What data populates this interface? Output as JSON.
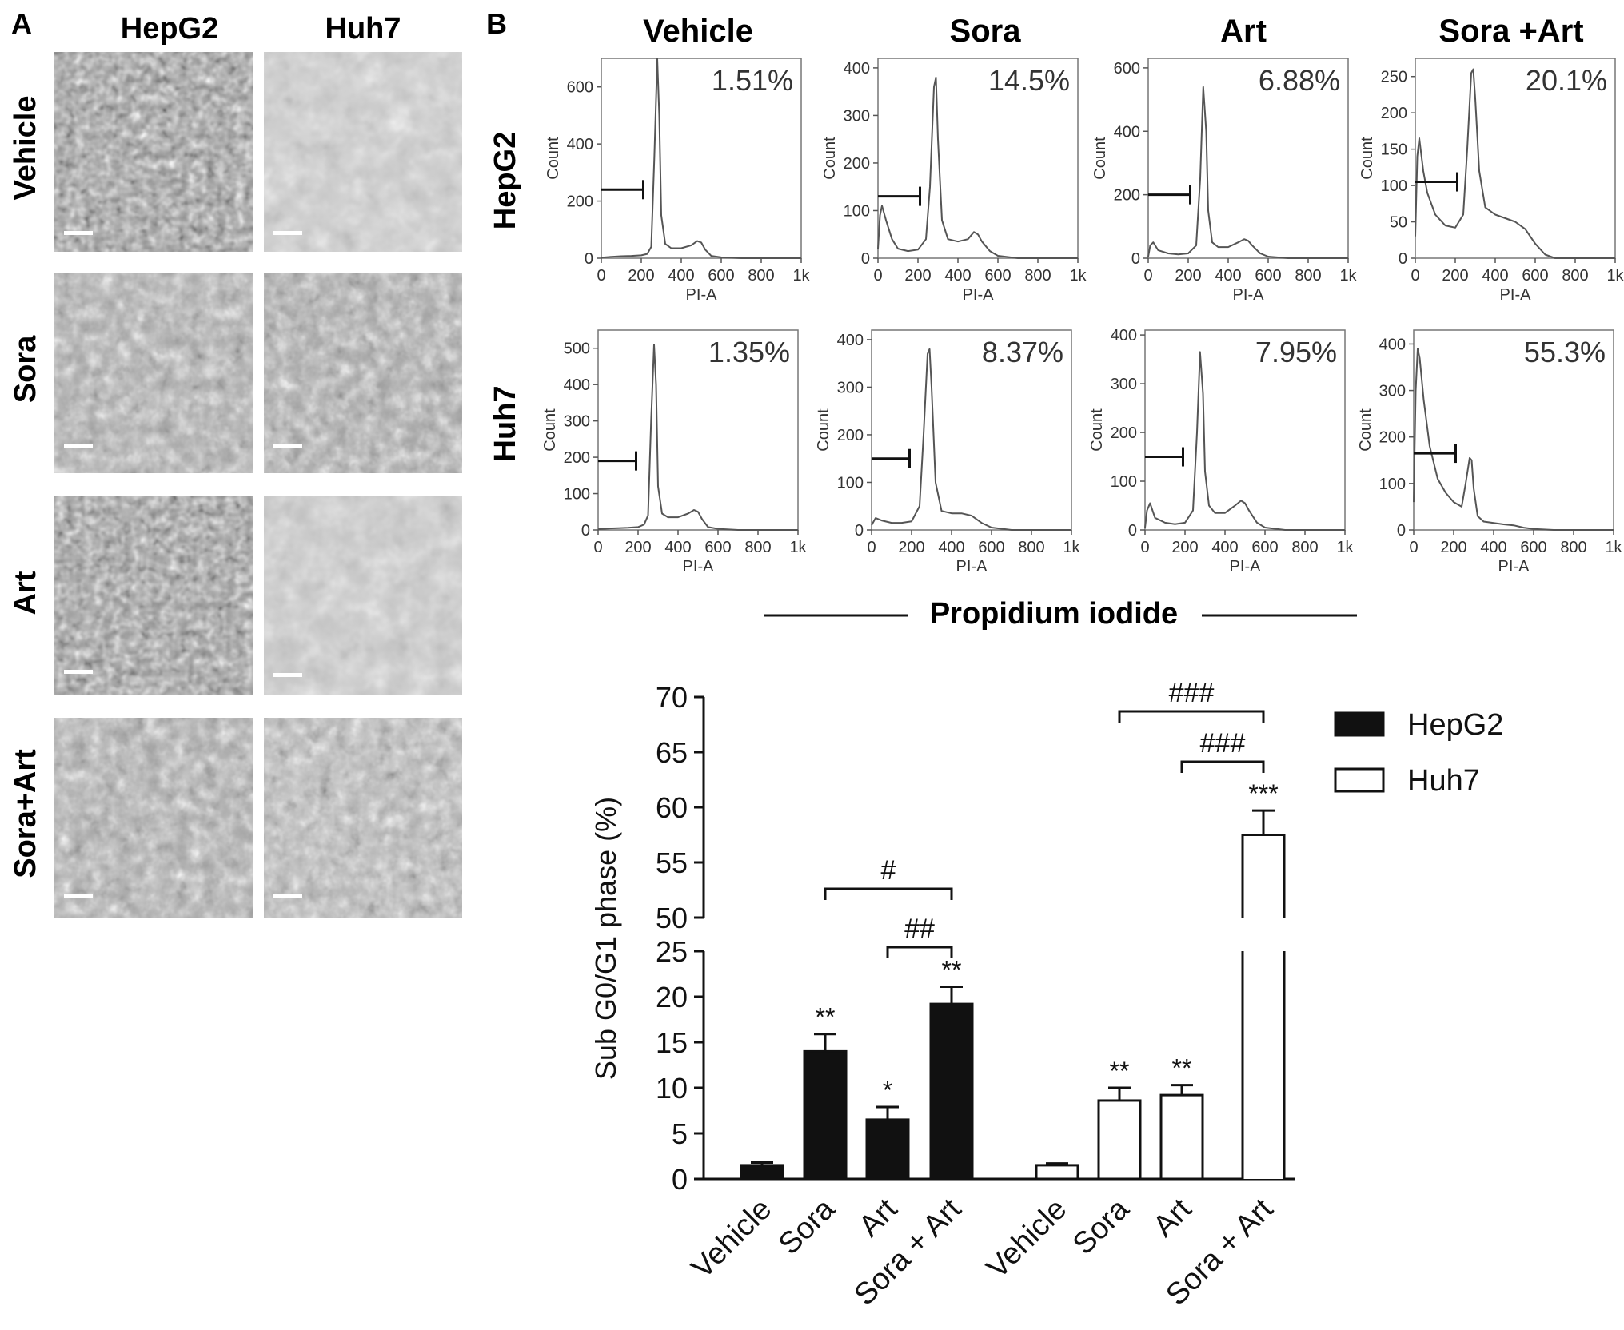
{
  "panel_a": {
    "label": "A",
    "columns": [
      "HepG2",
      "Huh7"
    ],
    "rows": [
      "Vehicle",
      "Sora",
      "Art",
      "Sora+Art"
    ]
  },
  "panel_b": {
    "label": "B",
    "columns": [
      "Vehicle",
      "Sora",
      "Art",
      "Sora +Art"
    ],
    "rows": [
      "HepG2",
      "Huh7"
    ],
    "axis_title": "Propidium iodide"
  },
  "chart_data": [
    {
      "type": "line",
      "panel": "B",
      "cell_line": "HepG2",
      "treatment": "Vehicle",
      "xlabel": "PI-A",
      "ylabel": "Count",
      "xlim": [
        0,
        1000
      ],
      "ylim": [
        0,
        700
      ],
      "xticks": [
        "0",
        "200",
        "400",
        "600",
        "800",
        "1k"
      ],
      "yticks": [
        0,
        200,
        400,
        600
      ],
      "gate": [
        0,
        210
      ],
      "gate_y": 240,
      "annotation": "1.51%",
      "x": [
        0,
        50,
        100,
        150,
        200,
        230,
        250,
        265,
        280,
        290,
        300,
        320,
        350,
        400,
        450,
        480,
        500,
        520,
        550,
        600,
        700,
        1000
      ],
      "y": [
        2,
        5,
        7,
        8,
        10,
        15,
        40,
        350,
        700,
        500,
        150,
        50,
        35,
        35,
        45,
        60,
        55,
        30,
        8,
        3,
        0,
        0
      ]
    },
    {
      "type": "line",
      "panel": "B",
      "cell_line": "HepG2",
      "treatment": "Sora",
      "xlabel": "PI-A",
      "ylabel": "Count",
      "xlim": [
        0,
        1000
      ],
      "ylim": [
        0,
        420
      ],
      "xticks": [
        "0",
        "200",
        "400",
        "600",
        "800",
        "1k"
      ],
      "yticks": [
        0,
        100,
        200,
        300,
        400
      ],
      "gate": [
        0,
        210
      ],
      "gate_y": 130,
      "annotation": "14.5%",
      "x": [
        0,
        10,
        20,
        40,
        70,
        100,
        150,
        200,
        240,
        260,
        280,
        290,
        300,
        320,
        350,
        400,
        450,
        480,
        500,
        520,
        560,
        600,
        700,
        1000
      ],
      "y": [
        20,
        90,
        110,
        80,
        40,
        20,
        15,
        18,
        40,
        150,
        360,
        380,
        250,
        80,
        40,
        35,
        40,
        55,
        50,
        35,
        15,
        5,
        0,
        0
      ]
    },
    {
      "type": "line",
      "panel": "B",
      "cell_line": "HepG2",
      "treatment": "Art",
      "xlabel": "PI-A",
      "ylabel": "Count",
      "xlim": [
        0,
        1000
      ],
      "ylim": [
        0,
        630
      ],
      "xticks": [
        "0",
        "200",
        "400",
        "600",
        "800",
        "1k"
      ],
      "yticks": [
        0,
        200,
        400,
        600
      ],
      "gate": [
        0,
        210
      ],
      "gate_y": 200,
      "annotation": "6.88%",
      "x": [
        0,
        10,
        25,
        50,
        100,
        150,
        200,
        240,
        260,
        275,
        290,
        300,
        320,
        350,
        400,
        450,
        480,
        500,
        520,
        560,
        600,
        700,
        1000
      ],
      "y": [
        5,
        40,
        50,
        25,
        15,
        12,
        15,
        40,
        250,
        540,
        400,
        150,
        50,
        35,
        35,
        50,
        60,
        55,
        40,
        15,
        5,
        0,
        0
      ]
    },
    {
      "type": "line",
      "panel": "B",
      "cell_line": "HepG2",
      "treatment": "Sora +Art",
      "xlabel": "PI-A",
      "ylabel": "Count",
      "xlim": [
        0,
        1000
      ],
      "ylim": [
        0,
        275
      ],
      "xticks": [
        "0",
        "200",
        "400",
        "600",
        "800",
        "1k"
      ],
      "yticks": [
        0,
        50,
        100,
        150,
        200,
        250
      ],
      "gate": [
        0,
        210
      ],
      "gate_y": 105,
      "annotation": "20.1%",
      "x": [
        0,
        10,
        20,
        40,
        60,
        100,
        150,
        200,
        240,
        260,
        280,
        290,
        300,
        320,
        350,
        400,
        450,
        500,
        550,
        600,
        650,
        700,
        1000
      ],
      "y": [
        30,
        140,
        165,
        120,
        90,
        60,
        45,
        42,
        60,
        150,
        255,
        260,
        220,
        120,
        70,
        60,
        55,
        50,
        40,
        20,
        5,
        0,
        0
      ]
    },
    {
      "type": "line",
      "panel": "B",
      "cell_line": "Huh7",
      "treatment": "Vehicle",
      "xlabel": "PI-A",
      "ylabel": "Count",
      "xlim": [
        0,
        1000
      ],
      "ylim": [
        0,
        550
      ],
      "xticks": [
        "0",
        "200",
        "400",
        "600",
        "800",
        "1k"
      ],
      "yticks": [
        0,
        100,
        200,
        300,
        400,
        500
      ],
      "gate": [
        0,
        190
      ],
      "gate_y": 190,
      "annotation": "1.35%",
      "x": [
        0,
        50,
        100,
        150,
        200,
        230,
        250,
        265,
        280,
        290,
        300,
        320,
        350,
        400,
        450,
        480,
        500,
        520,
        550,
        600,
        700,
        1000
      ],
      "y": [
        2,
        4,
        5,
        6,
        8,
        15,
        40,
        300,
        510,
        400,
        120,
        45,
        35,
        35,
        45,
        55,
        50,
        30,
        8,
        3,
        0,
        0
      ]
    },
    {
      "type": "line",
      "panel": "B",
      "cell_line": "Huh7",
      "treatment": "Sora",
      "xlabel": "PI-A",
      "ylabel": "Count",
      "xlim": [
        0,
        1000
      ],
      "ylim": [
        0,
        420
      ],
      "xticks": [
        "0",
        "200",
        "400",
        "600",
        "800",
        "1k"
      ],
      "yticks": [
        0,
        100,
        200,
        300,
        400
      ],
      "gate": [
        0,
        190
      ],
      "gate_y": 150,
      "annotation": "8.37%",
      "x": [
        0,
        20,
        50,
        100,
        150,
        200,
        240,
        260,
        280,
        290,
        300,
        320,
        350,
        400,
        450,
        500,
        550,
        600,
        700,
        1000
      ],
      "y": [
        10,
        25,
        20,
        15,
        15,
        18,
        50,
        200,
        370,
        380,
        300,
        100,
        40,
        35,
        35,
        30,
        15,
        5,
        0,
        0
      ]
    },
    {
      "type": "line",
      "panel": "B",
      "cell_line": "Huh7",
      "treatment": "Art",
      "xlabel": "PI-A",
      "ylabel": "Count",
      "xlim": [
        0,
        1000
      ],
      "ylim": [
        0,
        410
      ],
      "xticks": [
        "0",
        "200",
        "400",
        "600",
        "800",
        "1k"
      ],
      "yticks": [
        0,
        100,
        200,
        300,
        400
      ],
      "gate": [
        0,
        190
      ],
      "gate_y": 150,
      "annotation": "7.95%",
      "x": [
        0,
        10,
        25,
        50,
        100,
        150,
        200,
        240,
        260,
        275,
        290,
        300,
        320,
        350,
        400,
        450,
        480,
        500,
        520,
        560,
        600,
        700,
        1000
      ],
      "y": [
        5,
        40,
        55,
        25,
        15,
        12,
        15,
        40,
        200,
        365,
        280,
        120,
        50,
        35,
        35,
        50,
        60,
        55,
        40,
        15,
        5,
        0,
        0
      ]
    },
    {
      "type": "line",
      "panel": "B",
      "cell_line": "Huh7",
      "treatment": "Sora +Art",
      "xlabel": "PI-A",
      "ylabel": "Count",
      "xlim": [
        0,
        1000
      ],
      "ylim": [
        0,
        430
      ],
      "xticks": [
        "0",
        "200",
        "400",
        "600",
        "800",
        "1k"
      ],
      "yticks": [
        0,
        100,
        200,
        300,
        400
      ],
      "gate": [
        0,
        210
      ],
      "gate_y": 165,
      "annotation": "55.3%",
      "x": [
        0,
        10,
        20,
        30,
        50,
        80,
        120,
        160,
        200,
        240,
        260,
        280,
        290,
        300,
        320,
        350,
        400,
        450,
        500,
        550,
        600,
        700,
        1000
      ],
      "y": [
        60,
        300,
        390,
        370,
        280,
        180,
        110,
        80,
        60,
        50,
        100,
        155,
        150,
        90,
        30,
        18,
        15,
        12,
        10,
        5,
        2,
        0,
        0
      ]
    },
    {
      "type": "bar",
      "panel": "B",
      "ylabel": "Sub G0/G1 phase (%)",
      "ylim": [
        0,
        70
      ],
      "axis_break": [
        25,
        50
      ],
      "yticks": [
        0,
        5,
        10,
        15,
        20,
        25,
        50,
        55,
        60,
        65,
        70
      ],
      "groups": [
        {
          "name": "HepG2",
          "fill": "#111111",
          "categories": [
            "Vehicle",
            "Sora",
            "Art",
            "Sora + Art"
          ],
          "values": [
            1.5,
            14.0,
            6.5,
            19.2
          ],
          "errors": [
            0.3,
            1.9,
            1.4,
            1.9
          ],
          "significance": [
            "",
            "**",
            "*",
            "**"
          ]
        },
        {
          "name": "Huh7",
          "fill": "#ffffff",
          "categories": [
            "Vehicle",
            "Sora",
            "Art",
            "Sora + Art"
          ],
          "values": [
            1.5,
            8.6,
            9.2,
            57.5
          ],
          "errors": [
            0.2,
            1.4,
            1.1,
            2.2
          ],
          "significance": [
            "",
            "**",
            "**",
            "***"
          ]
        }
      ],
      "comparisons": [
        {
          "group": "HepG2",
          "from": "Sora",
          "to": "Sora + Art",
          "label": "#"
        },
        {
          "group": "HepG2",
          "from": "Art",
          "to": "Sora + Art",
          "label": "##"
        },
        {
          "group": "Huh7",
          "from": "Sora",
          "to": "Sora + Art",
          "label": "###"
        },
        {
          "group": "Huh7",
          "from": "Art",
          "to": "Sora + Art",
          "label": "###"
        }
      ],
      "legend": [
        {
          "label": "HepG2",
          "fill": "#111111"
        },
        {
          "label": "Huh7",
          "fill": "#ffffff"
        }
      ],
      "legend_position": "top-right"
    }
  ]
}
